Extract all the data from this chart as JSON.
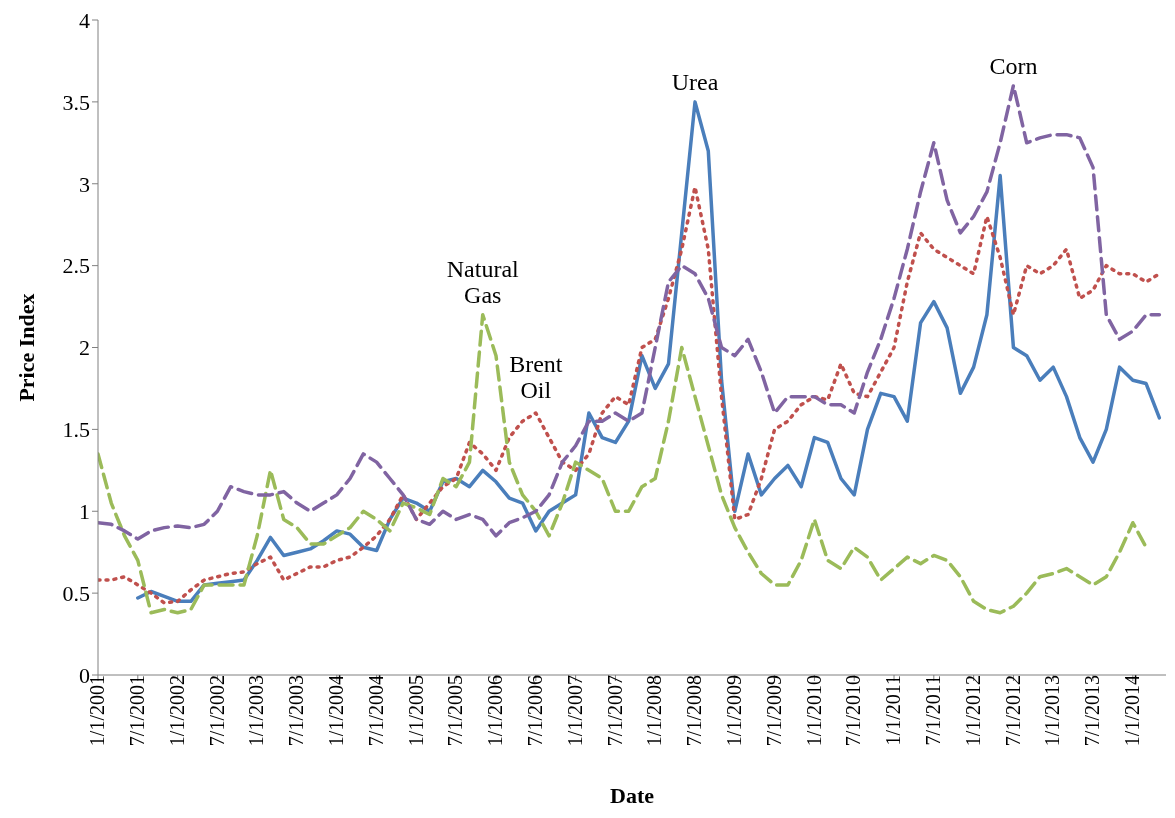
{
  "chart_data": {
    "type": "line",
    "xlabel": "Date",
    "ylabel": "Price Index",
    "x": [
      "2001-01",
      "2001-03",
      "2001-05",
      "2001-07",
      "2001-09",
      "2001-11",
      "2002-01",
      "2002-03",
      "2002-05",
      "2002-07",
      "2002-09",
      "2002-11",
      "2003-01",
      "2003-03",
      "2003-05",
      "2003-07",
      "2003-09",
      "2003-11",
      "2004-01",
      "2004-03",
      "2004-05",
      "2004-07",
      "2004-09",
      "2004-11",
      "2005-01",
      "2005-03",
      "2005-05",
      "2005-07",
      "2005-09",
      "2005-11",
      "2006-01",
      "2006-03",
      "2006-05",
      "2006-07",
      "2006-09",
      "2006-11",
      "2007-01",
      "2007-03",
      "2007-05",
      "2007-07",
      "2007-09",
      "2007-11",
      "2008-01",
      "2008-03",
      "2008-05",
      "2008-07",
      "2008-09",
      "2008-11",
      "2009-01",
      "2009-03",
      "2009-05",
      "2009-07",
      "2009-09",
      "2009-11",
      "2010-01",
      "2010-03",
      "2010-05",
      "2010-07",
      "2010-09",
      "2010-11",
      "2011-01",
      "2011-03",
      "2011-05",
      "2011-07",
      "2011-09",
      "2011-11",
      "2012-01",
      "2012-03",
      "2012-05",
      "2012-07",
      "2012-09",
      "2012-11",
      "2013-01",
      "2013-03",
      "2013-05",
      "2013-07",
      "2013-09",
      "2013-11",
      "2014-01",
      "2014-03",
      "2014-05"
    ],
    "series": [
      {
        "color": "#4a7ebb",
        "line_style": "solid",
        "values": [
          null,
          null,
          null,
          0.47,
          0.51,
          0.48,
          0.45,
          0.45,
          0.55,
          0.56,
          0.57,
          0.58,
          0.7,
          0.84,
          0.73,
          0.75,
          0.77,
          0.82,
          0.88,
          0.86,
          0.78,
          0.76,
          0.95,
          1.08,
          1.05,
          1.0,
          1.18,
          1.2,
          1.15,
          1.25,
          1.18,
          1.08,
          1.05,
          0.88,
          1.0,
          1.05,
          1.1,
          1.6,
          1.45,
          1.42,
          1.55,
          1.95,
          1.75,
          1.9,
          2.7,
          3.5,
          3.2,
          1.8,
          1.0,
          1.35,
          1.1,
          1.2,
          1.28,
          1.15,
          1.45,
          1.42,
          1.2,
          1.1,
          1.5,
          1.72,
          1.7,
          1.55,
          2.15,
          2.28,
          2.12,
          1.72,
          1.88,
          2.2,
          3.05,
          2.0,
          1.95,
          1.8,
          1.88,
          1.7,
          1.45,
          1.3,
          1.5,
          1.88,
          1.8,
          1.78,
          1.57
        ]
      },
      {
        "color": "#c0504d",
        "line_style": "dotted",
        "values": [
          0.58,
          0.58,
          0.6,
          0.55,
          0.5,
          0.44,
          0.45,
          0.52,
          0.58,
          0.6,
          0.62,
          0.63,
          0.68,
          0.72,
          0.58,
          0.62,
          0.66,
          0.66,
          0.7,
          0.72,
          0.78,
          0.85,
          0.95,
          1.1,
          0.95,
          1.05,
          1.15,
          1.2,
          1.42,
          1.35,
          1.25,
          1.45,
          1.55,
          1.6,
          1.45,
          1.3,
          1.25,
          1.35,
          1.6,
          1.7,
          1.65,
          2.0,
          2.05,
          2.3,
          2.6,
          2.98,
          2.6,
          1.7,
          0.95,
          0.98,
          1.2,
          1.5,
          1.55,
          1.65,
          1.7,
          1.68,
          1.9,
          1.72,
          1.7,
          1.85,
          2.0,
          2.4,
          2.7,
          2.6,
          2.55,
          2.5,
          2.45,
          2.8,
          2.55,
          2.2,
          2.5,
          2.45,
          2.5,
          2.6,
          2.3,
          2.35,
          2.5,
          2.45,
          2.45,
          2.4,
          2.45
        ]
      },
      {
        "color": "#9bbb59",
        "line_style": "dashed",
        "values": [
          1.35,
          1.05,
          0.85,
          0.7,
          0.38,
          0.4,
          0.38,
          0.4,
          0.55,
          0.55,
          0.55,
          0.55,
          0.85,
          1.25,
          0.95,
          0.9,
          0.8,
          0.8,
          0.85,
          0.9,
          1.0,
          0.95,
          0.88,
          1.05,
          1.02,
          0.98,
          1.2,
          1.15,
          1.3,
          2.2,
          1.95,
          1.3,
          1.1,
          1.0,
          0.85,
          1.05,
          1.3,
          1.25,
          1.2,
          1.0,
          1.0,
          1.15,
          1.2,
          1.55,
          2.0,
          1.7,
          1.4,
          1.1,
          0.9,
          0.75,
          0.62,
          0.55,
          0.55,
          0.7,
          0.95,
          0.7,
          0.65,
          0.78,
          0.72,
          0.58,
          0.65,
          0.72,
          0.68,
          0.73,
          0.7,
          0.6,
          0.45,
          0.4,
          0.38,
          0.42,
          0.5,
          0.6,
          0.62,
          0.65,
          0.6,
          0.55,
          0.6,
          0.75,
          0.93,
          0.78,
          null
        ]
      },
      {
        "color": "#8064a2",
        "line_style": "dashed",
        "values": [
          0.93,
          0.92,
          0.88,
          0.83,
          0.88,
          0.9,
          0.91,
          0.9,
          0.92,
          1.0,
          1.15,
          1.12,
          1.1,
          1.1,
          1.12,
          1.05,
          1.0,
          1.05,
          1.1,
          1.2,
          1.35,
          1.3,
          1.2,
          1.1,
          0.95,
          0.92,
          1.0,
          0.95,
          0.98,
          0.95,
          0.85,
          0.93,
          0.96,
          1.0,
          1.1,
          1.3,
          1.4,
          1.55,
          1.55,
          1.6,
          1.55,
          1.6,
          2.0,
          2.4,
          2.5,
          2.45,
          2.3,
          2.0,
          1.95,
          2.05,
          1.85,
          1.6,
          1.7,
          1.7,
          1.7,
          1.65,
          1.65,
          1.6,
          1.85,
          2.05,
          2.3,
          2.6,
          2.95,
          3.25,
          2.9,
          2.7,
          2.8,
          2.95,
          3.25,
          3.6,
          3.25,
          3.28,
          3.3,
          3.3,
          3.28,
          3.1,
          2.2,
          2.05,
          2.1,
          2.2,
          2.2
        ]
      }
    ],
    "annotations": [
      {
        "text": "Urea",
        "x": "2008-07",
        "y": 3.5
      },
      {
        "text": "Corn",
        "x": "2012-07",
        "y": 3.6
      },
      {
        "text": "Natural Gas",
        "x": "2005-11",
        "y": 2.2
      },
      {
        "text": "Brent Oil",
        "x": "2006-07",
        "y": 1.62
      }
    ],
    "xlim": [
      "2001-01",
      "2014-06"
    ],
    "xticks": [
      {
        "value": "2001-01",
        "label": "1/1/2001"
      },
      {
        "value": "2001-07",
        "label": "7/1/2001"
      },
      {
        "value": "2002-01",
        "label": "1/1/2002"
      },
      {
        "value": "2002-07",
        "label": "7/1/2002"
      },
      {
        "value": "2003-01",
        "label": "1/1/2003"
      },
      {
        "value": "2003-07",
        "label": "7/1/2003"
      },
      {
        "value": "2004-01",
        "label": "1/1/2004"
      },
      {
        "value": "2004-07",
        "label": "7/1/2004"
      },
      {
        "value": "2005-01",
        "label": "1/1/2005"
      },
      {
        "value": "2005-07",
        "label": "7/1/2005"
      },
      {
        "value": "2006-01",
        "label": "1/1/2006"
      },
      {
        "value": "2006-07",
        "label": "7/1/2006"
      },
      {
        "value": "2007-01",
        "label": "1/1/2007"
      },
      {
        "value": "2007-07",
        "label": "7/1/2007"
      },
      {
        "value": "2008-01",
        "label": "1/1/2008"
      },
      {
        "value": "2008-07",
        "label": "7/1/2008"
      },
      {
        "value": "2009-01",
        "label": "1/1/2009"
      },
      {
        "value": "2009-07",
        "label": "7/1/2009"
      },
      {
        "value": "2010-01",
        "label": "1/1/2010"
      },
      {
        "value": "2010-07",
        "label": "7/1/2010"
      },
      {
        "value": "2011-01",
        "label": "1/1/2011"
      },
      {
        "value": "2011-07",
        "label": "7/1/2011"
      },
      {
        "value": "2012-01",
        "label": "1/1/2012"
      },
      {
        "value": "2012-07",
        "label": "7/1/2012"
      },
      {
        "value": "2013-01",
        "label": "1/1/2013"
      },
      {
        "value": "2013-07",
        "label": "7/1/2013"
      },
      {
        "value": "2014-01",
        "label": "1/1/2014"
      }
    ],
    "ylim": [
      0,
      4
    ],
    "yticks": [
      0,
      0.5,
      1,
      1.5,
      2,
      2.5,
      3,
      3.5,
      4
    ],
    "marker": "none",
    "legend": false
  }
}
